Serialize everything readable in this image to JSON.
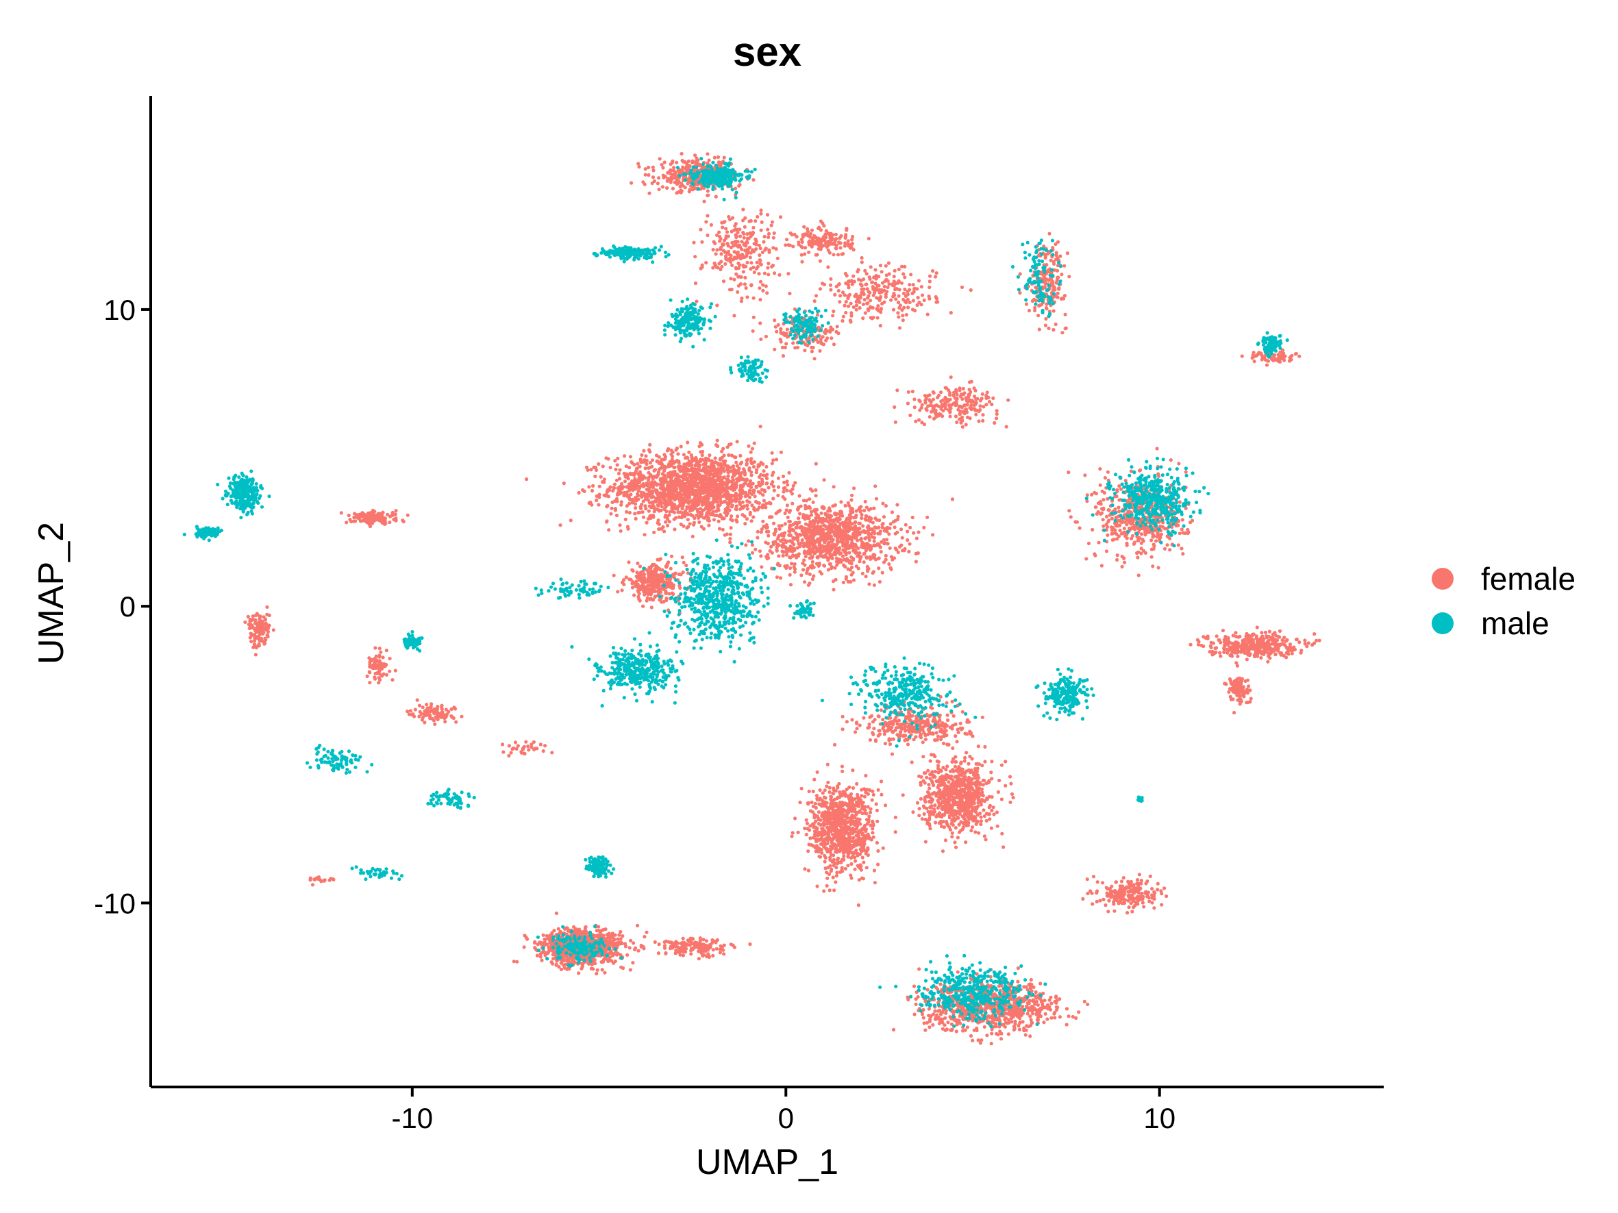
{
  "chart_data": {
    "type": "scatter",
    "title": "sex",
    "xlabel": "UMAP_1",
    "ylabel": "UMAP_2",
    "xlim": [
      -17,
      16
    ],
    "ylim": [
      -16.2,
      17.2
    ],
    "xticks": [
      -10,
      0,
      10
    ],
    "xtick_labels": [
      "-10",
      "0",
      "10"
    ],
    "yticks": [
      -10,
      0,
      10
    ],
    "ytick_labels": [
      "-10",
      "0",
      "10"
    ],
    "grid": false,
    "legend": {
      "placement": "right",
      "entries": [
        "female",
        "male"
      ]
    },
    "colors": {
      "female": "#F8766D",
      "male": "#00BFC4"
    },
    "series": [
      {
        "name": "female",
        "color": "#F8766D",
        "clusters": [
          {
            "center": [
              -2.5,
              4.0
            ],
            "spread": [
              2.2,
              1.2
            ],
            "n": 1600
          },
          {
            "center": [
              1.2,
              2.3
            ],
            "spread": [
              1.8,
              1.2
            ],
            "n": 1000
          },
          {
            "center": [
              -3.5,
              0.8
            ],
            "spread": [
              0.8,
              0.6
            ],
            "n": 300
          },
          {
            "center": [
              -2.3,
              14.5
            ],
            "spread": [
              1.1,
              0.5
            ],
            "n": 400
          },
          {
            "center": [
              -1.2,
              12.0
            ],
            "spread": [
              1.0,
              1.4
            ],
            "n": 250
          },
          {
            "center": [
              1.0,
              12.3
            ],
            "spread": [
              0.8,
              0.5
            ],
            "n": 150
          },
          {
            "center": [
              2.5,
              10.5
            ],
            "spread": [
              1.5,
              0.9
            ],
            "n": 250
          },
          {
            "center": [
              0.5,
              9.2
            ],
            "spread": [
              0.9,
              0.6
            ],
            "n": 150
          },
          {
            "center": [
              4.5,
              6.8
            ],
            "spread": [
              1.2,
              0.6
            ],
            "n": 200
          },
          {
            "center": [
              7.0,
              11.0
            ],
            "spread": [
              0.5,
              1.2
            ],
            "n": 200
          },
          {
            "center": [
              13.0,
              8.4
            ],
            "spread": [
              0.6,
              0.2
            ],
            "n": 60
          },
          {
            "center": [
              9.5,
              3.0
            ],
            "spread": [
              1.2,
              1.4
            ],
            "n": 500
          },
          {
            "center": [
              12.5,
              -1.3
            ],
            "spread": [
              1.2,
              0.4
            ],
            "n": 350
          },
          {
            "center": [
              12.1,
              -2.8
            ],
            "spread": [
              0.3,
              0.5
            ],
            "n": 100
          },
          {
            "center": [
              1.5,
              -7.5
            ],
            "spread": [
              0.9,
              1.5
            ],
            "n": 800
          },
          {
            "center": [
              4.6,
              -6.4
            ],
            "spread": [
              0.9,
              1.2
            ],
            "n": 700
          },
          {
            "center": [
              3.5,
              -4.0
            ],
            "spread": [
              1.4,
              0.6
            ],
            "n": 300
          },
          {
            "center": [
              -5.5,
              -11.5
            ],
            "spread": [
              1.1,
              0.6
            ],
            "n": 900
          },
          {
            "center": [
              -2.5,
              -11.5
            ],
            "spread": [
              1.0,
              0.3
            ],
            "n": 150
          },
          {
            "center": [
              5.5,
              -13.5
            ],
            "spread": [
              1.8,
              0.8
            ],
            "n": 800
          },
          {
            "center": [
              9.2,
              -9.7
            ],
            "spread": [
              0.8,
              0.5
            ],
            "n": 200
          },
          {
            "center": [
              -11.0,
              3.0
            ],
            "spread": [
              0.6,
              0.2
            ],
            "n": 150
          },
          {
            "center": [
              -14.1,
              -0.8
            ],
            "spread": [
              0.3,
              0.6
            ],
            "n": 120
          },
          {
            "center": [
              -10.9,
              -2.0
            ],
            "spread": [
              0.3,
              0.5
            ],
            "n": 80
          },
          {
            "center": [
              -9.4,
              -3.6
            ],
            "spread": [
              0.6,
              0.3
            ],
            "n": 90
          },
          {
            "center": [
              -7.0,
              -4.8
            ],
            "spread": [
              0.6,
              0.2
            ],
            "n": 30
          },
          {
            "center": [
              -12.5,
              -9.2
            ],
            "spread": [
              0.3,
              0.1
            ],
            "n": 20
          }
        ]
      },
      {
        "name": "male",
        "color": "#00BFC4",
        "clusters": [
          {
            "center": [
              -1.8,
              14.5
            ],
            "spread": [
              0.7,
              0.4
            ],
            "n": 250
          },
          {
            "center": [
              -4.2,
              11.9
            ],
            "spread": [
              0.8,
              0.2
            ],
            "n": 180
          },
          {
            "center": [
              -2.6,
              9.6
            ],
            "spread": [
              0.5,
              0.5
            ],
            "n": 180
          },
          {
            "center": [
              0.5,
              9.5
            ],
            "spread": [
              0.5,
              0.6
            ],
            "n": 120
          },
          {
            "center": [
              -1.0,
              8.0
            ],
            "spread": [
              0.4,
              0.4
            ],
            "n": 80
          },
          {
            "center": [
              6.8,
              11.0
            ],
            "spread": [
              0.5,
              1.2
            ],
            "n": 100
          },
          {
            "center": [
              13.0,
              8.8
            ],
            "spread": [
              0.3,
              0.3
            ],
            "n": 100
          },
          {
            "center": [
              9.8,
              3.6
            ],
            "spread": [
              1.0,
              1.0
            ],
            "n": 400
          },
          {
            "center": [
              -1.8,
              0.3
            ],
            "spread": [
              1.1,
              1.4
            ],
            "n": 600
          },
          {
            "center": [
              -4.0,
              -2.2
            ],
            "spread": [
              1.0,
              0.8
            ],
            "n": 350
          },
          {
            "center": [
              0.5,
              -0.2
            ],
            "spread": [
              0.3,
              0.3
            ],
            "n": 40
          },
          {
            "center": [
              -5.8,
              0.6
            ],
            "spread": [
              1.0,
              0.3
            ],
            "n": 60
          },
          {
            "center": [
              3.2,
              -3.0
            ],
            "spread": [
              1.2,
              1.0
            ],
            "n": 300
          },
          {
            "center": [
              7.5,
              -3.0
            ],
            "spread": [
              0.6,
              0.6
            ],
            "n": 200
          },
          {
            "center": [
              -14.5,
              3.8
            ],
            "spread": [
              0.4,
              0.6
            ],
            "n": 300
          },
          {
            "center": [
              -15.5,
              2.5
            ],
            "spread": [
              0.4,
              0.2
            ],
            "n": 80
          },
          {
            "center": [
              -10.0,
              -1.2
            ],
            "spread": [
              0.3,
              0.2
            ],
            "n": 60
          },
          {
            "center": [
              -12.0,
              -5.2
            ],
            "spread": [
              0.7,
              0.4
            ],
            "n": 80
          },
          {
            "center": [
              -9.0,
              -6.5
            ],
            "spread": [
              0.6,
              0.3
            ],
            "n": 60
          },
          {
            "center": [
              -11.0,
              -9.0
            ],
            "spread": [
              0.6,
              0.2
            ],
            "n": 40
          },
          {
            "center": [
              -5.0,
              -8.8
            ],
            "spread": [
              0.3,
              0.3
            ],
            "n": 120
          },
          {
            "center": [
              -5.5,
              -11.5
            ],
            "spread": [
              0.8,
              0.5
            ],
            "n": 150
          },
          {
            "center": [
              5.0,
              -13.0
            ],
            "spread": [
              1.4,
              0.8
            ],
            "n": 400
          },
          {
            "center": [
              9.5,
              -6.5
            ],
            "spread": [
              0.1,
              0.1
            ],
            "n": 10
          }
        ]
      }
    ]
  }
}
